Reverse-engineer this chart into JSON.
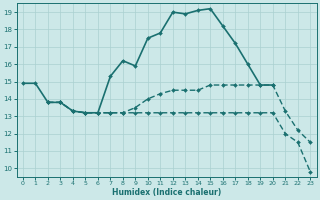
{
  "xlabel": "Humidex (Indice chaleur)",
  "xlim": [
    -0.5,
    23.5
  ],
  "ylim": [
    9.5,
    19.5
  ],
  "xticks": [
    0,
    1,
    2,
    3,
    4,
    5,
    6,
    7,
    8,
    9,
    10,
    11,
    12,
    13,
    14,
    15,
    16,
    17,
    18,
    19,
    20,
    21,
    22,
    23
  ],
  "yticks": [
    10,
    11,
    12,
    13,
    14,
    15,
    16,
    17,
    18,
    19
  ],
  "bg_color": "#cce8e8",
  "grid_color": "#aad0d0",
  "line_color": "#1a7070",
  "lines": [
    {
      "x": [
        0,
        1,
        2,
        3,
        4,
        5,
        6,
        7,
        8,
        9,
        10,
        11,
        12,
        13,
        14,
        15,
        16,
        17,
        18,
        19,
        20
      ],
      "y": [
        14.9,
        14.9,
        13.8,
        13.8,
        13.3,
        13.2,
        13.2,
        15.3,
        16.2,
        15.9,
        17.5,
        17.8,
        19.0,
        18.9,
        19.1,
        19.2,
        18.2,
        17.2,
        16.0,
        14.8,
        14.8
      ],
      "lw": 1.2,
      "ls": "solid",
      "marker": true
    },
    {
      "x": [
        2,
        3,
        4,
        5,
        6,
        7,
        8,
        9,
        10,
        11,
        12,
        13,
        14,
        15,
        16,
        17,
        18,
        19,
        20,
        21,
        22,
        23
      ],
      "y": [
        13.8,
        13.8,
        13.3,
        13.2,
        13.2,
        13.2,
        13.2,
        13.5,
        14.0,
        14.3,
        14.5,
        14.5,
        14.5,
        14.8,
        14.8,
        14.8,
        14.8,
        14.8,
        14.8,
        13.3,
        12.2,
        11.5
      ],
      "lw": 1.0,
      "ls": "dashed",
      "marker": true
    },
    {
      "x": [
        2,
        3,
        4,
        5,
        6,
        7,
        8,
        9,
        10,
        11,
        12,
        13,
        14,
        15,
        16,
        17,
        18,
        19,
        20,
        21,
        22,
        23
      ],
      "y": [
        13.8,
        13.8,
        13.3,
        13.2,
        13.2,
        13.2,
        13.2,
        13.2,
        13.2,
        13.2,
        13.2,
        13.2,
        13.2,
        13.2,
        13.2,
        13.2,
        13.2,
        13.2,
        13.2,
        12.0,
        11.5,
        9.8
      ],
      "lw": 1.0,
      "ls": "dashed",
      "marker": true
    }
  ]
}
